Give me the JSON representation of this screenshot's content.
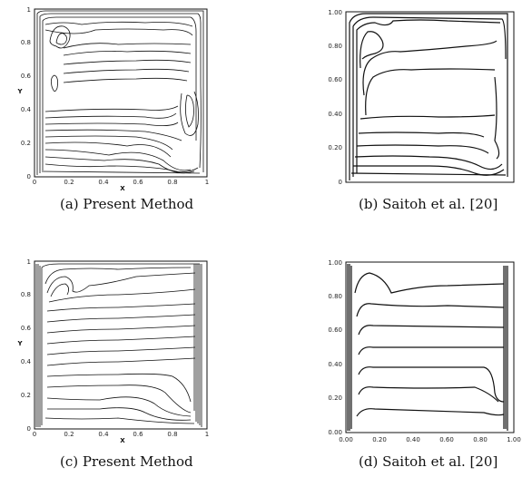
{
  "panels": {
    "a": {
      "caption": "(a) Present Method",
      "xlabel": "X",
      "ylabel": "Y",
      "xticks": [
        "0",
        "0.2",
        "0.4",
        "0.6",
        "0.8",
        "1"
      ],
      "yticks": [
        "0",
        "0.2",
        "0.4",
        "0.6",
        "0.8",
        "1"
      ]
    },
    "b": {
      "caption": "(b) Saitoh et al. [20]",
      "yticks": [
        "0",
        "0.20",
        "0.40",
        "0.60",
        "0.80",
        "1.00"
      ]
    },
    "c": {
      "caption": "(c) Present Method",
      "xlabel": "X",
      "ylabel": "Y",
      "xticks": [
        "0",
        "0.2",
        "0.4",
        "0.6",
        "0.8",
        "1"
      ],
      "yticks": [
        "0",
        "0.2",
        "0.4",
        "0.6",
        "0.8",
        "1"
      ]
    },
    "d": {
      "caption": "(d) Saitoh et al. [20]",
      "xticks": [
        "0.00",
        "0.20",
        "0.40",
        "0.60",
        "0.80",
        "1.00"
      ],
      "yticks": [
        "0.00",
        "0.20",
        "0.40",
        "0.60",
        "0.80",
        "1.00"
      ]
    }
  }
}
